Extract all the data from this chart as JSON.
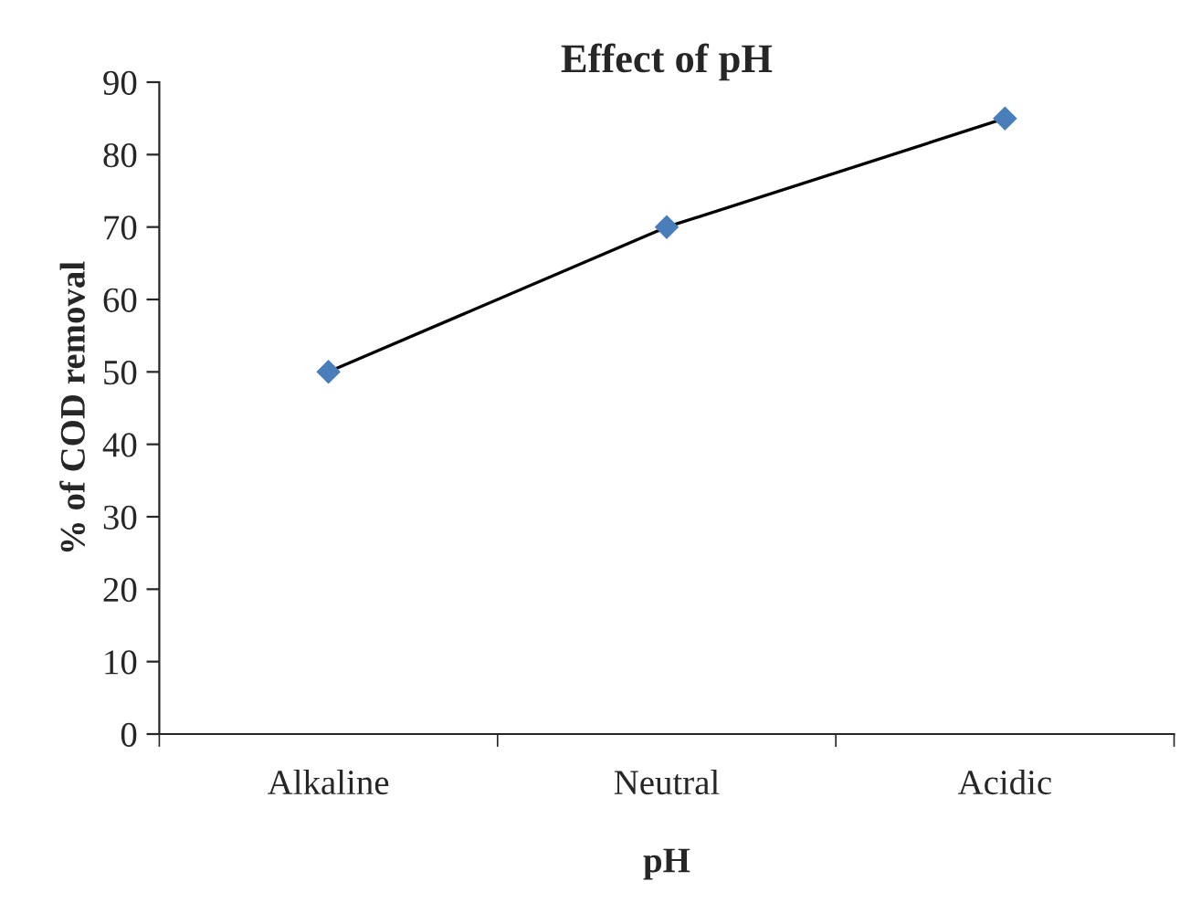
{
  "chart_data": {
    "type": "line",
    "title": "Effect of pH",
    "xlabel": "pH",
    "ylabel": "% of COD removal",
    "categories": [
      "Alkaline",
      "Neutral",
      "Acidic"
    ],
    "series": [
      {
        "color": "#4a7ebb",
        "values": [
          50,
          70,
          85
        ]
      }
    ],
    "ylim": [
      0,
      90
    ],
    "yticks": [
      0,
      10,
      20,
      30,
      40,
      50,
      60,
      70,
      80,
      90
    ],
    "marker": "diamond",
    "line_style": "solid",
    "grid": false,
    "legend": false
  }
}
